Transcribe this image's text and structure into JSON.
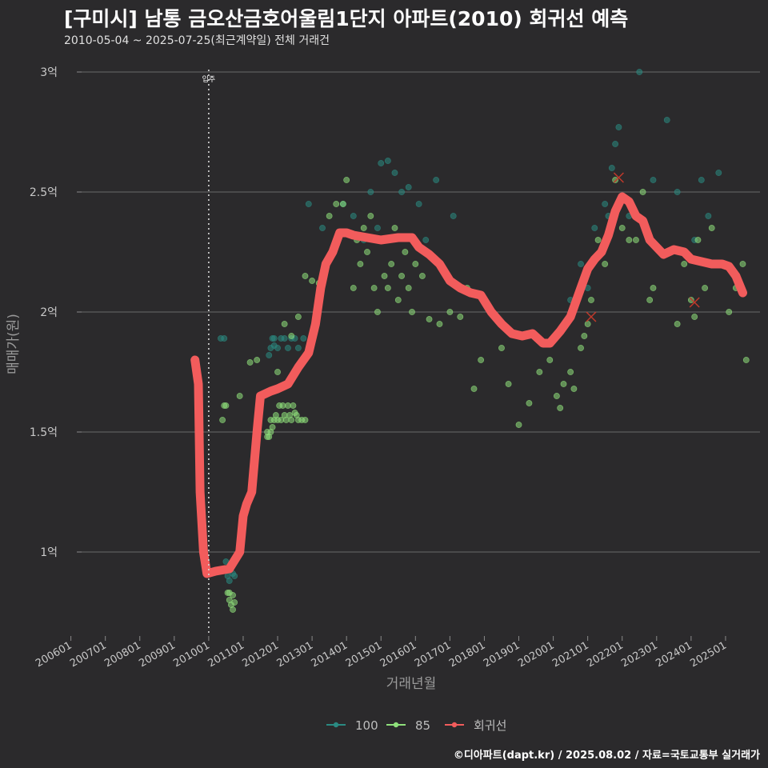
{
  "header": {
    "title": "[구미시] 남통 금오산금호어울림1단지 아파트(2010) 회귀선 예측",
    "subtitle": "2010-05-04 ~ 2025-07-25(최근계약일) 전체 거래건"
  },
  "caption": "©디아파트(dapt.kr) / 2025.08.02 / 자료=국토교통부 실거래가",
  "chart_data": {
    "type": "scatter",
    "title": "[구미시] 남통 금오산금호어울림1단지 아파트(2010) 회귀선 예측",
    "xlabel": "거래년월",
    "ylabel": "매매가(원)",
    "xlim": [
      2005.8,
      2026.0
    ],
    "ylim": [
      0.65,
      3.05
    ],
    "y_unit": "억",
    "y_ticks": [
      {
        "value": 1,
        "label": "1억"
      },
      {
        "value": 1.5,
        "label": "1.5억"
      },
      {
        "value": 2,
        "label": "2억"
      },
      {
        "value": 2.5,
        "label": "2.5억"
      },
      {
        "value": 3,
        "label": "3억"
      }
    ],
    "x_ticks": [
      {
        "value": 2006,
        "label": "200601"
      },
      {
        "value": 2007,
        "label": "200701"
      },
      {
        "value": 2008,
        "label": "200801"
      },
      {
        "value": 2009,
        "label": "200901"
      },
      {
        "value": 2010,
        "label": "201001"
      },
      {
        "value": 2011,
        "label": "201101"
      },
      {
        "value": 2012,
        "label": "201201"
      },
      {
        "value": 2013,
        "label": "201301"
      },
      {
        "value": 2014,
        "label": "201401"
      },
      {
        "value": 2015,
        "label": "201501"
      },
      {
        "value": 2016,
        "label": "201601"
      },
      {
        "value": 2017,
        "label": "201701"
      },
      {
        "value": 2018,
        "label": "201801"
      },
      {
        "value": 2019,
        "label": "201901"
      },
      {
        "value": 2020,
        "label": "202001"
      },
      {
        "value": 2021,
        "label": "202101"
      },
      {
        "value": 2022,
        "label": "202201"
      },
      {
        "value": 2023,
        "label": "202301"
      },
      {
        "value": 2024,
        "label": "202401"
      },
      {
        "value": 2025,
        "label": "202501"
      }
    ],
    "annotation": {
      "x": 2010.0,
      "label": "입주"
    },
    "series": [
      {
        "name": "100",
        "color": "#2a8a82",
        "points": [
          [
            2010.35,
            1.89
          ],
          [
            2010.45,
            1.89
          ],
          [
            2010.5,
            0.96
          ],
          [
            2010.55,
            0.9
          ],
          [
            2010.6,
            0.88
          ],
          [
            2010.7,
            0.91
          ],
          [
            2010.75,
            0.9
          ],
          [
            2011.75,
            1.82
          ],
          [
            2011.8,
            1.85
          ],
          [
            2011.85,
            1.89
          ],
          [
            2011.9,
            1.89
          ],
          [
            2012.0,
            1.85
          ],
          [
            2012.1,
            1.89
          ],
          [
            2012.2,
            1.89
          ],
          [
            2012.3,
            1.85
          ],
          [
            2012.5,
            1.89
          ],
          [
            2012.6,
            1.85
          ],
          [
            2012.75,
            1.89
          ],
          [
            2011.9,
            1.86
          ],
          [
            2012.4,
            1.89
          ],
          [
            2012.9,
            2.45
          ],
          [
            2013.3,
            2.35
          ],
          [
            2013.9,
            2.45
          ],
          [
            2014.2,
            2.4
          ],
          [
            2014.5,
            2.3
          ],
          [
            2014.7,
            2.5
          ],
          [
            2014.9,
            2.35
          ],
          [
            2015.0,
            2.62
          ],
          [
            2015.2,
            2.63
          ],
          [
            2015.4,
            2.58
          ],
          [
            2015.6,
            2.5
          ],
          [
            2015.8,
            2.52
          ],
          [
            2016.1,
            2.45
          ],
          [
            2016.3,
            2.3
          ],
          [
            2016.6,
            2.55
          ],
          [
            2017.1,
            2.4
          ],
          [
            2020.5,
            2.05
          ],
          [
            2020.8,
            2.2
          ],
          [
            2021.0,
            2.1
          ],
          [
            2021.2,
            2.35
          ],
          [
            2021.5,
            2.45
          ],
          [
            2021.6,
            2.4
          ],
          [
            2021.7,
            2.6
          ],
          [
            2021.8,
            2.7
          ],
          [
            2021.9,
            2.77
          ],
          [
            2022.2,
            2.4
          ],
          [
            2022.5,
            3.0
          ],
          [
            2022.9,
            2.55
          ],
          [
            2023.3,
            2.8
          ],
          [
            2023.6,
            2.5
          ],
          [
            2024.1,
            2.3
          ],
          [
            2024.3,
            2.55
          ],
          [
            2024.5,
            2.4
          ],
          [
            2024.8,
            2.58
          ],
          [
            2025.0,
            2.2
          ]
        ]
      },
      {
        "name": "85",
        "color": "#8fe07b",
        "points": [
          [
            2010.4,
            1.55
          ],
          [
            2010.45,
            1.61
          ],
          [
            2010.5,
            1.61
          ],
          [
            2010.55,
            0.83
          ],
          [
            2010.6,
            0.8
          ],
          [
            2010.65,
            0.78
          ],
          [
            2010.7,
            0.82
          ],
          [
            2010.75,
            0.79
          ],
          [
            2010.6,
            0.83
          ],
          [
            2010.7,
            0.76
          ],
          [
            2010.9,
            1.65
          ],
          [
            2011.2,
            1.79
          ],
          [
            2011.4,
            1.8
          ],
          [
            2011.7,
            1.5
          ],
          [
            2011.75,
            1.48
          ],
          [
            2011.8,
            1.55
          ],
          [
            2011.85,
            1.52
          ],
          [
            2011.9,
            1.55
          ],
          [
            2011.95,
            1.57
          ],
          [
            2012.0,
            1.55
          ],
          [
            2012.05,
            1.61
          ],
          [
            2012.1,
            1.55
          ],
          [
            2012.15,
            1.61
          ],
          [
            2012.2,
            1.57
          ],
          [
            2012.25,
            1.55
          ],
          [
            2012.3,
            1.61
          ],
          [
            2012.35,
            1.57
          ],
          [
            2012.4,
            1.55
          ],
          [
            2012.45,
            1.61
          ],
          [
            2012.5,
            1.58
          ],
          [
            2012.55,
            1.57
          ],
          [
            2012.6,
            1.55
          ],
          [
            2012.7,
            1.55
          ],
          [
            2012.8,
            1.55
          ],
          [
            2011.8,
            1.5
          ],
          [
            2011.7,
            1.48
          ],
          [
            2012.0,
            1.75
          ],
          [
            2012.2,
            1.95
          ],
          [
            2012.4,
            1.9
          ],
          [
            2012.6,
            1.98
          ],
          [
            2012.8,
            2.15
          ],
          [
            2013.0,
            2.13
          ],
          [
            2013.2,
            2.12
          ],
          [
            2013.5,
            2.4
          ],
          [
            2013.7,
            2.45
          ],
          [
            2013.9,
            2.45
          ],
          [
            2014.0,
            2.55
          ],
          [
            2014.2,
            2.1
          ],
          [
            2014.3,
            2.3
          ],
          [
            2014.4,
            2.2
          ],
          [
            2014.5,
            2.35
          ],
          [
            2014.6,
            2.25
          ],
          [
            2014.7,
            2.4
          ],
          [
            2014.8,
            2.1
          ],
          [
            2014.9,
            2.0
          ],
          [
            2015.0,
            2.3
          ],
          [
            2015.1,
            2.15
          ],
          [
            2015.2,
            2.1
          ],
          [
            2015.3,
            2.2
          ],
          [
            2015.4,
            2.35
          ],
          [
            2015.5,
            2.05
          ],
          [
            2015.6,
            2.15
          ],
          [
            2015.7,
            2.25
          ],
          [
            2015.8,
            2.1
          ],
          [
            2015.9,
            2.0
          ],
          [
            2016.0,
            2.2
          ],
          [
            2016.2,
            2.15
          ],
          [
            2016.4,
            1.97
          ],
          [
            2016.7,
            1.95
          ],
          [
            2017.0,
            2.0
          ],
          [
            2017.3,
            1.98
          ],
          [
            2017.5,
            2.1
          ],
          [
            2017.7,
            1.68
          ],
          [
            2017.9,
            1.8
          ],
          [
            2018.2,
            2.0
          ],
          [
            2018.5,
            1.85
          ],
          [
            2018.7,
            1.7
          ],
          [
            2019.0,
            1.53
          ],
          [
            2019.3,
            1.62
          ],
          [
            2019.6,
            1.75
          ],
          [
            2019.9,
            1.8
          ],
          [
            2020.1,
            1.65
          ],
          [
            2020.2,
            1.6
          ],
          [
            2020.3,
            1.7
          ],
          [
            2020.5,
            1.75
          ],
          [
            2020.6,
            1.68
          ],
          [
            2020.8,
            1.85
          ],
          [
            2020.9,
            1.9
          ],
          [
            2021.0,
            1.95
          ],
          [
            2021.1,
            2.05
          ],
          [
            2021.3,
            2.3
          ],
          [
            2021.5,
            2.2
          ],
          [
            2021.8,
            2.55
          ],
          [
            2022.0,
            2.35
          ],
          [
            2022.2,
            2.3
          ],
          [
            2022.4,
            2.3
          ],
          [
            2022.6,
            2.5
          ],
          [
            2022.8,
            2.05
          ],
          [
            2022.9,
            2.1
          ],
          [
            2023.3,
            2.25
          ],
          [
            2023.6,
            1.95
          ],
          [
            2023.8,
            2.2
          ],
          [
            2024.0,
            2.05
          ],
          [
            2024.1,
            1.98
          ],
          [
            2024.2,
            2.3
          ],
          [
            2024.4,
            2.1
          ],
          [
            2024.6,
            2.35
          ],
          [
            2024.8,
            2.2
          ],
          [
            2025.1,
            2.0
          ],
          [
            2025.3,
            2.1
          ],
          [
            2025.5,
            2.2
          ],
          [
            2025.6,
            1.8
          ]
        ]
      },
      {
        "name": "회귀선",
        "color": "#f25c5c",
        "points": [
          [
            2009.6,
            1.8
          ],
          [
            2009.7,
            1.7
          ],
          [
            2009.75,
            1.25
          ],
          [
            2009.85,
            1.0
          ],
          [
            2009.95,
            0.91
          ],
          [
            2010.2,
            0.92
          ],
          [
            2010.6,
            0.93
          ],
          [
            2010.9,
            1.0
          ],
          [
            2011.0,
            1.15
          ],
          [
            2011.1,
            1.2
          ],
          [
            2011.25,
            1.25
          ],
          [
            2011.4,
            1.5
          ],
          [
            2011.5,
            1.65
          ],
          [
            2011.8,
            1.67
          ],
          [
            2012.0,
            1.68
          ],
          [
            2012.3,
            1.7
          ],
          [
            2012.6,
            1.77
          ],
          [
            2012.9,
            1.83
          ],
          [
            2013.1,
            1.95
          ],
          [
            2013.25,
            2.1
          ],
          [
            2013.4,
            2.2
          ],
          [
            2013.6,
            2.25
          ],
          [
            2013.8,
            2.33
          ],
          [
            2014.0,
            2.33
          ],
          [
            2014.2,
            2.32
          ],
          [
            2014.6,
            2.31
          ],
          [
            2015.0,
            2.3
          ],
          [
            2015.5,
            2.31
          ],
          [
            2015.9,
            2.31
          ],
          [
            2016.1,
            2.27
          ],
          [
            2016.4,
            2.24
          ],
          [
            2016.7,
            2.2
          ],
          [
            2017.0,
            2.13
          ],
          [
            2017.3,
            2.1
          ],
          [
            2017.6,
            2.08
          ],
          [
            2017.9,
            2.07
          ],
          [
            2018.2,
            2.0
          ],
          [
            2018.5,
            1.95
          ],
          [
            2018.8,
            1.91
          ],
          [
            2019.1,
            1.9
          ],
          [
            2019.4,
            1.91
          ],
          [
            2019.7,
            1.87
          ],
          [
            2019.9,
            1.87
          ],
          [
            2020.2,
            1.92
          ],
          [
            2020.5,
            1.98
          ],
          [
            2020.8,
            2.1
          ],
          [
            2021.0,
            2.18
          ],
          [
            2021.2,
            2.22
          ],
          [
            2021.4,
            2.25
          ],
          [
            2021.6,
            2.32
          ],
          [
            2021.8,
            2.42
          ],
          [
            2022.0,
            2.48
          ],
          [
            2022.2,
            2.46
          ],
          [
            2022.4,
            2.4
          ],
          [
            2022.6,
            2.38
          ],
          [
            2022.8,
            2.3
          ],
          [
            2023.0,
            2.27
          ],
          [
            2023.2,
            2.24
          ],
          [
            2023.5,
            2.26
          ],
          [
            2023.8,
            2.25
          ],
          [
            2024.0,
            2.22
          ],
          [
            2024.3,
            2.21
          ],
          [
            2024.6,
            2.2
          ],
          [
            2024.9,
            2.2
          ],
          [
            2025.1,
            2.19
          ],
          [
            2025.3,
            2.15
          ],
          [
            2025.5,
            2.08
          ]
        ]
      }
    ],
    "highlighted_points": [
      [
        2021.9,
        2.56
      ],
      [
        2021.1,
        1.98
      ],
      [
        2024.1,
        2.04
      ]
    ],
    "legend": {
      "position": "bottom",
      "entries": [
        "100",
        "85",
        "회귀선"
      ]
    }
  }
}
